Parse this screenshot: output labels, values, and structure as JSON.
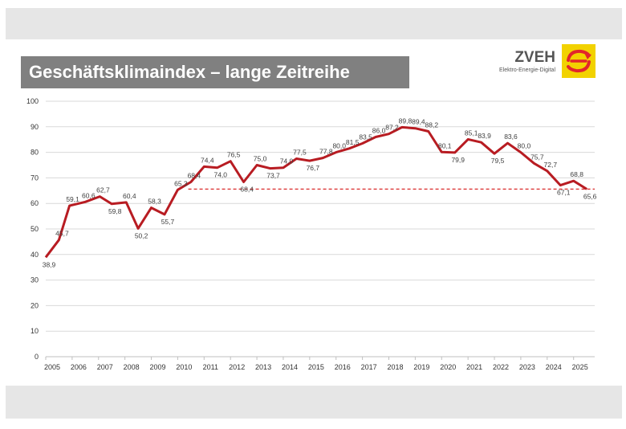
{
  "header": {
    "title": "Geschäftsklimaindex – lange Zeitreihe",
    "logo_name": "ZVEH",
    "logo_tagline": "Elektro-Energie-Digital"
  },
  "colors": {
    "band": "#e6e6e6",
    "title_bg": "#808080",
    "series": "#b81c22",
    "reference": "#d92b2b",
    "logo_yellow": "#f2d200",
    "logo_red": "#e2262b"
  },
  "chart_data": {
    "type": "line",
    "title": "",
    "xlabel": "",
    "ylabel": "",
    "ylim": [
      0,
      100
    ],
    "yticks": [
      0,
      10,
      20,
      30,
      40,
      50,
      60,
      70,
      80,
      90,
      100
    ],
    "grid": true,
    "xlim": [
      2005,
      2025.8
    ],
    "x_tick_labels": [
      "2005",
      "2006",
      "2007",
      "2008",
      "2009",
      "2010",
      "2011",
      "2012",
      "2013",
      "2014",
      "2015",
      "2016",
      "2017",
      "2018",
      "2019",
      "2020",
      "2021",
      "2022",
      "2023",
      "2024",
      "2025"
    ],
    "reference_line": {
      "value": 65.6,
      "from_x": 2010.4,
      "style": "dashed"
    },
    "series": [
      {
        "points": [
          {
            "x": 2005.0,
            "y": 38.9,
            "label": "38,9"
          },
          {
            "x": 2005.5,
            "y": 45.7,
            "label": "45,7"
          },
          {
            "x": 2005.9,
            "y": 59.1,
            "label": "59,1"
          },
          {
            "x": 2006.5,
            "y": 60.6,
            "label": "60,6"
          },
          {
            "x": 2007.05,
            "y": 62.7,
            "label": "62,7"
          },
          {
            "x": 2007.5,
            "y": 59.8,
            "label": "59,8"
          },
          {
            "x": 2008.05,
            "y": 60.4,
            "label": "60,4"
          },
          {
            "x": 2008.5,
            "y": 50.2,
            "label": "50,2"
          },
          {
            "x": 2009.0,
            "y": 58.3,
            "label": "58,3"
          },
          {
            "x": 2009.5,
            "y": 55.7,
            "label": "55,7"
          },
          {
            "x": 2010.0,
            "y": 65.3,
            "label": "65,3"
          },
          {
            "x": 2010.5,
            "y": 68.4,
            "label": "68,4"
          },
          {
            "x": 2011.0,
            "y": 74.4,
            "label": "74,4"
          },
          {
            "x": 2011.5,
            "y": 74.0,
            "label": "74,0"
          },
          {
            "x": 2012.0,
            "y": 76.5,
            "label": "76,5"
          },
          {
            "x": 2012.5,
            "y": 68.4,
            "label": "68,4"
          },
          {
            "x": 2013.0,
            "y": 75.0,
            "label": "75,0"
          },
          {
            "x": 2013.5,
            "y": 73.7,
            "label": "73,7"
          },
          {
            "x": 2014.0,
            "y": 74.0,
            "label": "74,0"
          },
          {
            "x": 2014.5,
            "y": 77.5,
            "label": "77,5"
          },
          {
            "x": 2015.0,
            "y": 76.7,
            "label": "76,7"
          },
          {
            "x": 2015.5,
            "y": 77.8,
            "label": "77,8"
          },
          {
            "x": 2016.0,
            "y": 80.0,
            "label": "80,0"
          },
          {
            "x": 2016.5,
            "y": 81.5,
            "label": "81,5"
          },
          {
            "x": 2017.0,
            "y": 83.5,
            "label": "83,5"
          },
          {
            "x": 2017.5,
            "y": 86.0,
            "label": "86,0"
          },
          {
            "x": 2018.0,
            "y": 87.2,
            "label": "87,2"
          },
          {
            "x": 2018.5,
            "y": 89.8,
            "label": "89,8"
          },
          {
            "x": 2019.0,
            "y": 89.4,
            "label": "89,4"
          },
          {
            "x": 2019.5,
            "y": 88.2,
            "label": "88,2"
          },
          {
            "x": 2020.0,
            "y": 80.1,
            "label": "80,1"
          },
          {
            "x": 2020.5,
            "y": 79.9,
            "label": "79,9"
          },
          {
            "x": 2021.0,
            "y": 85.1,
            "label": "85,1"
          },
          {
            "x": 2021.5,
            "y": 83.9,
            "label": "83,9"
          },
          {
            "x": 2022.0,
            "y": 79.5,
            "label": "79,5"
          },
          {
            "x": 2022.5,
            "y": 83.6,
            "label": "83,6"
          },
          {
            "x": 2023.0,
            "y": 80.0,
            "label": "80,0"
          },
          {
            "x": 2023.5,
            "y": 75.7,
            "label": "75,7"
          },
          {
            "x": 2024.0,
            "y": 72.7,
            "label": "72,7"
          },
          {
            "x": 2024.5,
            "y": 67.1,
            "label": "67,1"
          },
          {
            "x": 2025.0,
            "y": 68.8,
            "label": "68,8"
          },
          {
            "x": 2025.5,
            "y": 65.6,
            "label": "65,6"
          }
        ]
      }
    ]
  }
}
